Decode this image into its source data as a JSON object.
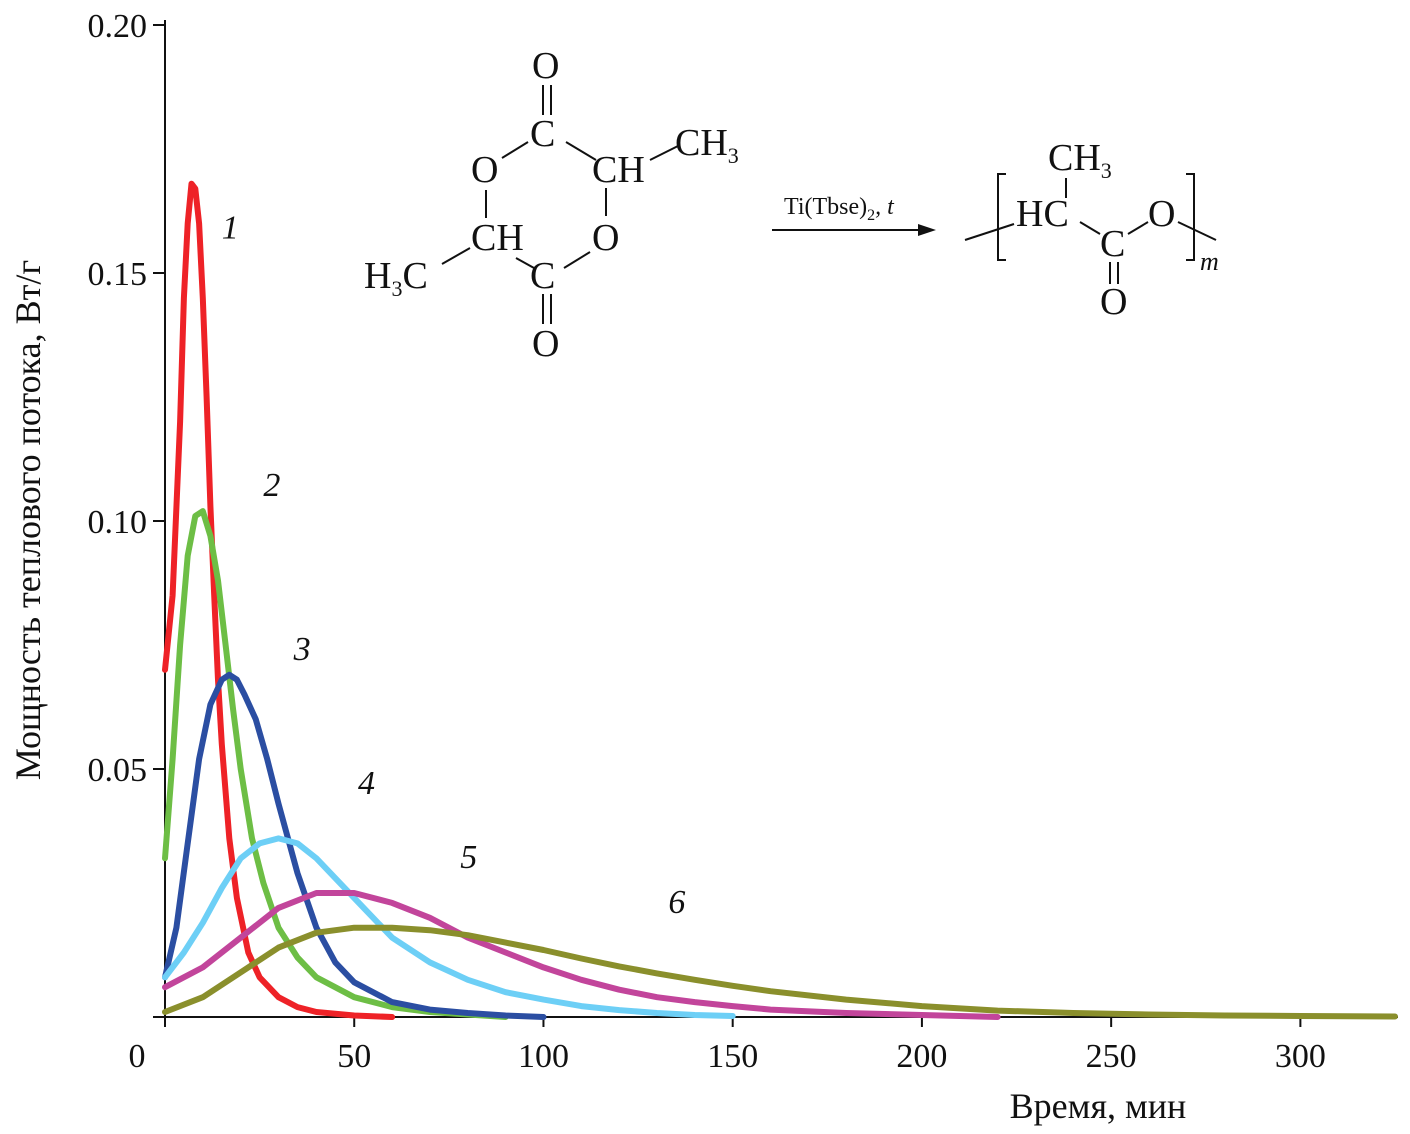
{
  "chart_data": {
    "type": "line",
    "xlabel": "Время, мин",
    "ylabel": "Мощность теплового потока, Вт/г",
    "xlim": [
      0,
      325
    ],
    "ylim": [
      0,
      0.2
    ],
    "x_ticks": [
      0,
      50,
      100,
      150,
      200,
      250,
      300
    ],
    "x_tick_labels": [
      "0",
      "50",
      "100",
      "150",
      "200",
      "250",
      "300"
    ],
    "y_ticks": [
      0.05,
      0.1,
      0.15,
      0.2
    ],
    "y_tick_labels": [
      "0.05",
      "0.10",
      "0.15",
      "0.20"
    ],
    "grid": false,
    "series": [
      {
        "name": "1",
        "color": "#ee2227",
        "x": [
          0,
          2,
          4,
          5,
          6,
          7,
          8,
          9,
          10,
          11,
          12,
          13,
          14,
          15,
          17,
          19,
          22,
          25,
          30,
          35,
          40,
          50,
          60
        ],
        "y": [
          0.07,
          0.085,
          0.12,
          0.145,
          0.16,
          0.168,
          0.167,
          0.16,
          0.145,
          0.125,
          0.103,
          0.085,
          0.068,
          0.055,
          0.036,
          0.024,
          0.013,
          0.008,
          0.004,
          0.002,
          0.001,
          0.0003,
          0.0
        ]
      },
      {
        "name": "2",
        "color": "#6dbe45",
        "x": [
          0,
          2,
          4,
          6,
          8,
          10,
          12,
          14,
          16,
          18,
          20,
          23,
          26,
          30,
          35,
          40,
          50,
          60,
          70,
          80,
          90
        ],
        "y": [
          0.032,
          0.052,
          0.075,
          0.093,
          0.101,
          0.102,
          0.097,
          0.088,
          0.075,
          0.062,
          0.05,
          0.036,
          0.027,
          0.018,
          0.012,
          0.008,
          0.004,
          0.002,
          0.001,
          0.0005,
          0.0
        ]
      },
      {
        "name": "3",
        "color": "#2b4ea2",
        "x": [
          0,
          3,
          6,
          9,
          12,
          15,
          17,
          19,
          21,
          24,
          27,
          30,
          35,
          40,
          45,
          50,
          60,
          70,
          80,
          90,
          100
        ],
        "y": [
          0.008,
          0.018,
          0.035,
          0.052,
          0.063,
          0.068,
          0.069,
          0.068,
          0.065,
          0.06,
          0.052,
          0.043,
          0.029,
          0.018,
          0.011,
          0.007,
          0.003,
          0.0015,
          0.0008,
          0.0003,
          0.0
        ]
      },
      {
        "name": "4",
        "color": "#6dcff6",
        "x": [
          0,
          5,
          10,
          15,
          20,
          25,
          30,
          35,
          40,
          50,
          60,
          70,
          80,
          90,
          100,
          110,
          120,
          130,
          140,
          150
        ],
        "y": [
          0.008,
          0.013,
          0.019,
          0.026,
          0.032,
          0.035,
          0.036,
          0.035,
          0.032,
          0.024,
          0.016,
          0.011,
          0.0075,
          0.005,
          0.0035,
          0.0022,
          0.0014,
          0.0008,
          0.0004,
          0.0002
        ]
      },
      {
        "name": "5",
        "color": "#c2459b",
        "x": [
          0,
          10,
          20,
          30,
          40,
          50,
          60,
          70,
          80,
          90,
          100,
          110,
          120,
          130,
          140,
          150,
          160,
          180,
          200,
          220
        ],
        "y": [
          0.006,
          0.01,
          0.016,
          0.022,
          0.025,
          0.025,
          0.023,
          0.02,
          0.016,
          0.013,
          0.01,
          0.0075,
          0.0055,
          0.004,
          0.003,
          0.0022,
          0.0015,
          0.0008,
          0.0004,
          0.0
        ]
      },
      {
        "name": "6",
        "color": "#8a8f2c",
        "x": [
          0,
          10,
          20,
          30,
          40,
          50,
          60,
          70,
          80,
          90,
          100,
          110,
          120,
          130,
          140,
          150,
          160,
          180,
          200,
          220,
          240,
          260,
          280,
          300,
          325
        ],
        "y": [
          0.001,
          0.004,
          0.009,
          0.014,
          0.017,
          0.018,
          0.018,
          0.0175,
          0.0165,
          0.015,
          0.0135,
          0.0118,
          0.0102,
          0.0088,
          0.0075,
          0.0063,
          0.0052,
          0.0035,
          0.0022,
          0.0013,
          0.0008,
          0.0005,
          0.0003,
          0.0002,
          0.0001
        ]
      }
    ],
    "annotations": [
      {
        "text": "1",
        "x": 15,
        "y": 0.157
      },
      {
        "text": "2",
        "x": 26,
        "y": 0.105
      },
      {
        "text": "3",
        "x": 34,
        "y": 0.072
      },
      {
        "text": "4",
        "x": 51,
        "y": 0.045
      },
      {
        "text": "5",
        "x": 78,
        "y": 0.03
      },
      {
        "text": "6",
        "x": 133,
        "y": 0.021
      }
    ]
  },
  "reaction": {
    "o_top": "O",
    "c_top": "C",
    "ch_right": "CH",
    "ch3_right": "CH",
    "ch3_right_sub": "3",
    "o_left": "O",
    "ch_left": "CH",
    "o_right": "O",
    "h3c_h": "H",
    "h3c_sub": "3",
    "h3c_c": "C",
    "c_bottom": "C",
    "o_bottom": "O",
    "catalyst": "Ti(Tbse)",
    "catalyst_sub": "2",
    "catalyst_t": ", t",
    "p_ch3": "CH",
    "p_ch3_sub": "3",
    "p_hc": "HC",
    "p_c": "C",
    "p_o": "O",
    "p_o_bottom": "O",
    "p_m": "m"
  }
}
